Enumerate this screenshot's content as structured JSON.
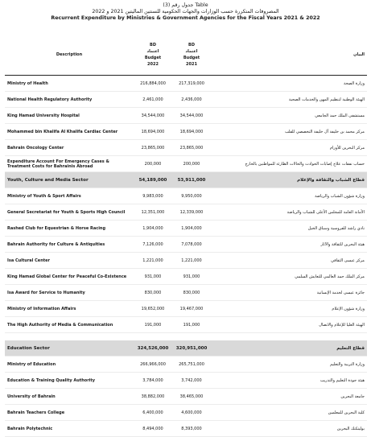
{
  "titles": {
    "table_ar": "جدول رقم (3) Table",
    "main_ar": "المصروفات المتكررة حسب الوزارات والجهات الحكومية للسنتين الماليتين 2021 و 2022",
    "main_en": "Recurrent Expenditure by Ministries & Government Agencies for the Fiscal Years 2021 & 2022"
  },
  "header": {
    "description": "Description",
    "arabic": "البيان",
    "col_2022": {
      "l1": "BD",
      "l2": "اعتماد",
      "l3": "Budget",
      "l4": "2022"
    },
    "col_2021": {
      "l1": "BD",
      "l2": "اعتماد",
      "l3": "Budget",
      "l4": "2021"
    }
  },
  "rows": [
    {
      "type": "item",
      "en": "Ministry of Health",
      "b2022": "216,884,000",
      "b2021": "217,319,000",
      "ar": "وزارة الصحة"
    },
    {
      "type": "item",
      "en": "National Health Regulatory Authority",
      "b2022": "2,461,000",
      "b2021": "2,436,000",
      "ar": "الهيئة الوطنية لتنظيم المهن والخدمات الصحية"
    },
    {
      "type": "item",
      "en": "King Hamad University Hospital",
      "b2022": "34,544,000",
      "b2021": "34,544,000",
      "ar": "مستشفى الملك حمد الجامعي"
    },
    {
      "type": "item",
      "en": "Mohammed bin Khalifa Al Khalifa Cardiac Center",
      "b2022": "18,694,000",
      "b2021": "18,694,000",
      "ar": "مركز محمد بن خليفة آل خليفة التخصصي للقلب"
    },
    {
      "type": "item",
      "en": "Bahrain Oncology Center",
      "b2022": "23,865,000",
      "b2021": "23,865,000",
      "ar": "مركز البحرين للأورام"
    },
    {
      "type": "item",
      "en": "Expenditure Account For Emergency Cases & Treatment Costs for Bahrainis Abroad",
      "b2022": "200,000",
      "b2021": "200,000",
      "ar": "حساب نفقات علاج إصابات الحوادث والحالات الطارئة للمواطنين بالخارج"
    },
    {
      "type": "sector",
      "en": "Youth, Culture and Media Sector",
      "b2022": "54,189,000",
      "b2021": "53,911,000",
      "ar": "قطاع الشباب والثقافة والإعلام"
    },
    {
      "type": "item",
      "en": "Ministry of Youth & Sport Affairs",
      "b2022": "9,983,000",
      "b2021": "9,950,000",
      "ar": "وزارة شؤون الشباب والرياضة"
    },
    {
      "type": "item",
      "en": "General Secretariat for Youth & Sports High Council",
      "b2022": "12,351,000",
      "b2021": "12,339,000",
      "ar": "الأمانة العامة للمجلس الأعلى للشباب والرياضة"
    },
    {
      "type": "item",
      "en": "Rashed Club for Equestrian & Horse Racing",
      "b2022": "1,904,000",
      "b2021": "1,904,000",
      "ar": "نادي راشد للفروسية وسباق الخيل"
    },
    {
      "type": "item",
      "en": "Bahrain Authority for Culture & Antiquities",
      "b2022": "7,126,000",
      "b2021": "7,078,000",
      "ar": "هيئة البحرين للثقافة والآثار"
    },
    {
      "type": "item",
      "en": "Isa Cultural Center",
      "b2022": "1,221,000",
      "b2021": "1,221,000",
      "ar": "مركز عيسى الثقافي"
    },
    {
      "type": "item",
      "en": "King Hamad Global Center for Peaceful Co-Existence",
      "b2022": "931,000",
      "b2021": "931,000",
      "ar": "مركز الملك حمد العالمي للتعايش السلمي"
    },
    {
      "type": "item",
      "en": "Isa Award for Service to Humanity",
      "b2022": "830,000",
      "b2021": "830,000",
      "ar": "جائزة عيسى لخدمة الإنسانية"
    },
    {
      "type": "item",
      "en": "Ministry of Information Affairs",
      "b2022": "19,652,000",
      "b2021": "19,467,000",
      "ar": "وزارة شؤون الإعلام"
    },
    {
      "type": "item",
      "en": "The High Authority of Media & Communication",
      "b2022": "191,000",
      "b2021": "191,000",
      "ar": "الهيئة العليا للإعلام والاتصال"
    },
    {
      "type": "gap"
    },
    {
      "type": "sector",
      "en": "Education Sector",
      "b2022": "324,526,000",
      "b2021": "320,951,000",
      "ar": "قطاع التعليم"
    },
    {
      "type": "item",
      "en": "Ministry of Education",
      "b2022": "266,966,000",
      "b2021": "265,751,000",
      "ar": "وزارة التربية والتعليم"
    },
    {
      "type": "item",
      "en": "Education & Training Quality Authority",
      "b2022": "3,784,000",
      "b2021": "3,742,000",
      "ar": "هيئة جودة التعليم والتدريب"
    },
    {
      "type": "item",
      "en": "University of Bahrain",
      "b2022": "38,882,000",
      "b2021": "38,465,000",
      "ar": "جامعة البحرين"
    },
    {
      "type": "item",
      "en": "Bahrain Teachers College",
      "b2022": "6,400,000",
      "b2021": "4,600,000",
      "ar": "كلية البحرين للمعلمين"
    },
    {
      "type": "item",
      "en": "Bahrain Polytechnic",
      "b2022": "8,494,000",
      "b2021": "8,393,000",
      "ar": "بوليتكنك البحرين"
    }
  ]
}
